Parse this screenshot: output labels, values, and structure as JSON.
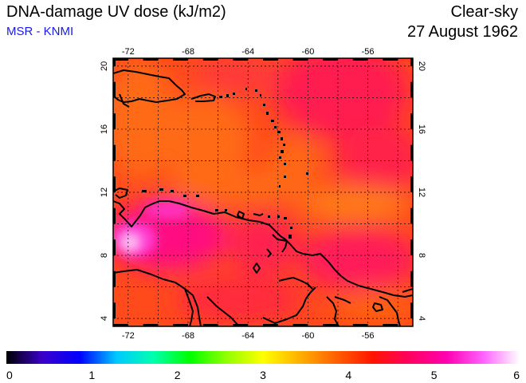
{
  "header": {
    "title": "DNA-damage UV dose (kJ/m2)",
    "subtitle": "MSR - KNMI",
    "mode": "Clear-sky",
    "date": "27 August 1962"
  },
  "map": {
    "lon_range": [
      -73,
      -53
    ],
    "lat_range": [
      3.5,
      20.5
    ],
    "lon_ticks": [
      "-72",
      "-68",
      "-64",
      "-60",
      "-56"
    ],
    "lat_ticks": [
      "20",
      "16",
      "12",
      "8",
      "4"
    ],
    "grid": true
  },
  "colorbar": {
    "range": [
      0,
      6
    ],
    "labels": [
      "0",
      "1",
      "2",
      "3",
      "4",
      "5",
      "6"
    ],
    "colors": [
      "#000000",
      "#3a00cc",
      "#0000ff",
      "#00c8ff",
      "#00ffb0",
      "#00ff00",
      "#90ff00",
      "#ffff00",
      "#ffb000",
      "#ff6000",
      "#ff1400",
      "#ff0060",
      "#ff00b0",
      "#ff60ff",
      "#ffffff"
    ]
  }
}
